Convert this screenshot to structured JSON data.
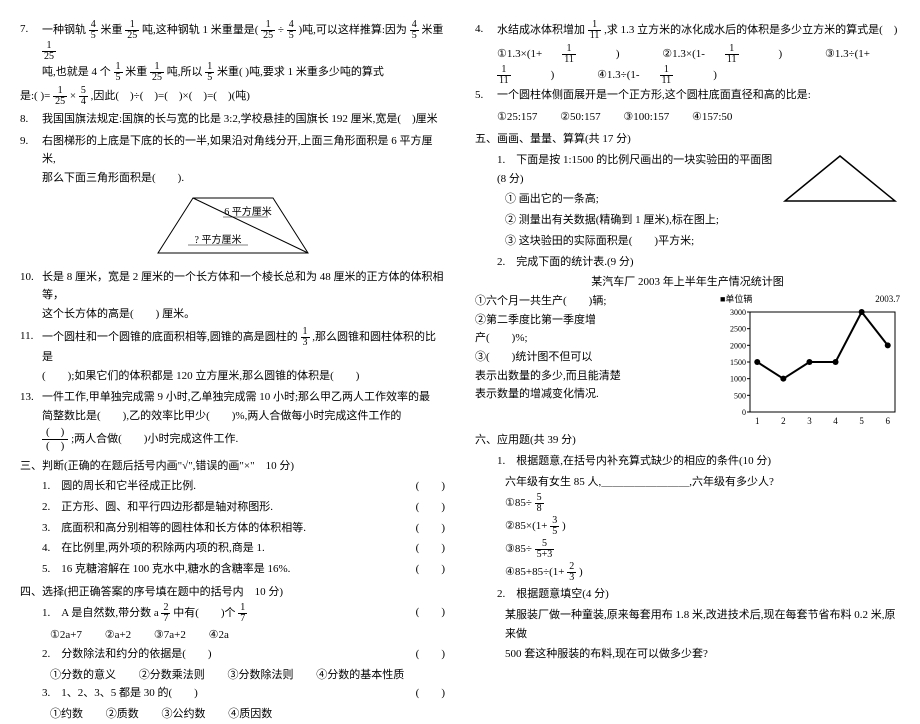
{
  "left": {
    "q7": {
      "t1": "一种钢轨",
      "f1n": "4",
      "f1d": "5",
      "t2": "米重",
      "f2n": "1",
      "f2d": "25",
      "t3": "吨,这种钢轨 1 米重量是(",
      "f3n": "1",
      "f3d": "25",
      "t4": "÷",
      "f4n": "4",
      "f4d": "5",
      "t5": ")吨,可以这样推算:因为",
      "f5n": "4",
      "f5d": "5",
      "t6": "米重",
      "f6n": "1",
      "f6d": "25",
      "line2a": "吨,也就是 4 个",
      "f7n": "1",
      "f7d": "5",
      "line2b": "米重",
      "f8n": "1",
      "f8d": "25",
      "line2c": "吨,所以",
      "f9n": "1",
      "f9d": "5",
      "line2d": "米重(",
      "line2e": ")吨,要求 1 米重多少吨的算式",
      "line3a": "是:(",
      "line3b": ")=",
      "f10n": "1",
      "f10d": "25",
      "line3c": "×",
      "f11n": "5",
      "f11d": "4",
      "line3d": ",因此(　)÷(　)=(　)×(　)=(　)(吨)"
    },
    "q8": "我国国旗法规定:国旗的长与宽的比是 3:2,学校悬挂的国旗长 192 厘米,宽是(　)厘米",
    "q9a": "右图梯形的上底是下底的长的一半,如果沿对角线分开,上面三角形面积是 6 平方厘米,",
    "q9b": "那么下面三角形面积是(　　).",
    "trap": {
      "top": "6 平方厘米",
      "bottom": "? 平方厘米"
    },
    "q10a": "长是 8 厘米，宽是 2 厘米的一个长方体和一个棱长总和为 48 厘米的正方体的体积相等，",
    "q10b": "这个长方体的高是(　　) 厘米。",
    "q11a": "一个圆柱和一个圆锥的底面积相等,圆锥的高是圆柱的",
    "f11n": "1",
    "f11d": "3",
    "q11b": ",那么圆锥和圆柱体积的比是",
    "q11c": "(　　);如果它们的体积都是 120 立方厘米,那么圆锥的体积是(　　)",
    "q13a": "一件工作,甲单独完成需 9 小时,乙单独完成需 10 小时;那么甲乙两人工作效率的最",
    "q13b": "简整数比是(　　),乙的效率比甲少(　　)%,两人合做每小时完成这件工作的",
    "q13c": ";两人合做(　　)小时完成这件工作.",
    "s3": "三、判断(正确的在题后括号内画\"√\",错误的画\"×\"　10 分)",
    "j1": "圆的周长和它半径成正比例.",
    "j2": "正方形、圆、和平行四边形都是轴对称图形.",
    "j3": "底面积和高分别相等的圆柱体和长方体的体积相等.",
    "j4": "在比例里,两外项的积除两内项的积,商是 1.",
    "j5": "16 克糖溶解在 100 克水中,糖水的含糖率是 16%.",
    "s4": "四、选择(把正确答案的序号填在题中的括号内　10 分)",
    "c1a": "A 是自然数,带分数 a",
    "c1fn": "2",
    "c1fd": "7",
    "c1b": "中有(　　)个",
    "c1fn2": "1",
    "c1fd2": "7",
    "c1o1": "①2a+7",
    "c1o2": "②a+2",
    "c1o3": "③7a+2",
    "c1o4": "④2a",
    "c2": "分数除法和约分的依据是(　　)",
    "c2o1": "①分数的意义",
    "c2o2": "②分数乘法则",
    "c2o3": "③分数除法则",
    "c2o4": "④分数的基本性质",
    "c3": "1、2、3、5 都是 30 的(　　)",
    "c3o1": "①约数",
    "c3o2": "②质数",
    "c3o3": "③公约数",
    "c3o4": "④质因数"
  },
  "right": {
    "q4a": "水结成冰体积增加",
    "f4n": "1",
    "f4d": "11",
    "q4b": ",求 1.3 立方米的冰化成水后的体积是多少立方米的算式是(　)",
    "q4o1": "①1.3×(1+",
    "q4o1b": ")",
    "q4o2": "②1.3×(1-",
    "q4o2b": ")",
    "q4o3": "③1.3÷(1+",
    "q4o3b": ")",
    "q4o4": "④1.3÷(1-",
    "q4o4b": ")",
    "q5": "一个圆柱体侧面展开是一个正方形,这个圆柱底面直径和高的比是:",
    "q5o1": "①25:157",
    "q5o2": "②50:157",
    "q5o3": "③100:157",
    "q5o4": "④157:50",
    "s5": "五、画画、量量、算算(共 17 分)",
    "d1": "下面是按 1:1500 的比例尺画出的一块实验田的平面图　　(8 分)",
    "d1a": "① 画出它的一条高;",
    "d1b": "② 测量出有关数据(精确到 1 厘米),标在图上;",
    "d1c": "③ 这块验田的实际面积是(　　)平方米;",
    "d2": "完成下面的统计表.(9 分)",
    "chartTitle": "某汽车厂 2003 年上半年生产情况统计图",
    "chartUnit": "■单位辆",
    "chartDate": "2003.7",
    "c1": "①六个月一共生产(　　)辆;",
    "c2": "②第二季度比第一季度增",
    "c3": "产(　　)%;",
    "c4a": "③(　　)统计图不但可以",
    "c4b": "表示出数量的多少,而且能清楚",
    "c4c": "表示数量的增减变化情况.",
    "yvals": [
      "3000",
      "2500",
      "2000",
      "1500",
      "1000",
      "500",
      "0"
    ],
    "xvals": [
      "1",
      "2",
      "3",
      "4",
      "5",
      "6"
    ],
    "points": [
      [
        0,
        1500
      ],
      [
        1,
        1000
      ],
      [
        2,
        1500
      ],
      [
        3,
        1500
      ],
      [
        4,
        3000
      ],
      [
        5,
        2000
      ]
    ],
    "ylim": [
      0,
      3000
    ],
    "s6": "六、应用题(共 39 分)",
    "a1": "根据题意,在括号内补充算式缺少的相应的条件(10 分)",
    "a1a": "六年级有女生 85 人,＿＿＿＿＿＿＿＿,六年级有多少人?",
    "e1": "①85÷",
    "e1fn": "5",
    "e1fd": "8",
    "e2": "②85×(1+",
    "e2fn": "3",
    "e2fd": "5",
    "e2b": ")",
    "e3": "③85÷",
    "e3fn": "5",
    "e3fd": "5+3",
    "e4": "④85+85÷(1+",
    "e4fn": "2",
    "e4fd": "3",
    "e4b": ")",
    "a2": "根据题意填空(4 分)",
    "a2a": "某服装厂做一种童装,原来每套用布 1.8 米,改进技术后,现在每套节省布料 0.2 米,原来做",
    "a2b": "500 套这种服装的布料,现在可以做多少套?"
  }
}
